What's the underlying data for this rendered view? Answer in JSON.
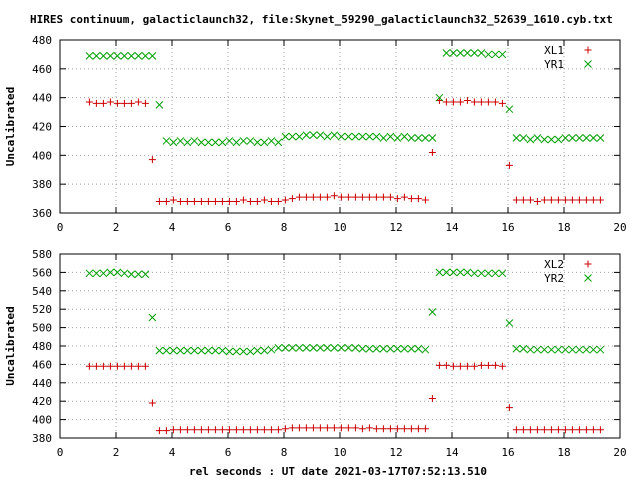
{
  "page": {
    "title": "HIRES continuum, galacticlaunch32, file:Skynet_59290_galacticlaunch32_52639_1610.cyb.txt",
    "xlabel": "rel seconds : UT date 2021-03-17T07:52:13.510"
  },
  "colors": {
    "red": "#cc0000",
    "green": "#00a000",
    "axis": "#000000",
    "grid": "#a0a0a0"
  },
  "chart_data": [
    {
      "type": "scatter",
      "ylabel": "Uncalibrated",
      "xlim": [
        0,
        20
      ],
      "ylim": [
        360,
        480
      ],
      "xticks": [
        0,
        2,
        4,
        6,
        8,
        10,
        12,
        14,
        16,
        18,
        20
      ],
      "yticks": [
        360,
        380,
        400,
        420,
        440,
        460,
        480
      ],
      "grid": true,
      "legend": "top-right",
      "series": [
        {
          "name": "XL1",
          "marker": "plus",
          "color": "#cc0000",
          "x": [
            1.05,
            1.3,
            1.55,
            1.8,
            2.05,
            2.3,
            2.55,
            2.8,
            3.05,
            3.3,
            3.55,
            3.8,
            4.05,
            4.3,
            4.55,
            4.8,
            5.05,
            5.3,
            5.55,
            5.8,
            6.05,
            6.3,
            6.55,
            6.8,
            7.05,
            7.3,
            7.55,
            7.8,
            8.05,
            8.3,
            8.55,
            8.8,
            9.05,
            9.3,
            9.55,
            9.8,
            10.05,
            10.3,
            10.55,
            10.8,
            11.05,
            11.3,
            11.55,
            11.8,
            12.05,
            12.3,
            12.55,
            12.8,
            13.05,
            13.3,
            13.55,
            13.8,
            14.05,
            14.3,
            14.55,
            14.8,
            15.05,
            15.3,
            15.55,
            15.8,
            16.05,
            16.3,
            16.55,
            16.8,
            17.05,
            17.3,
            17.55,
            17.8,
            18.05,
            18.3,
            18.55,
            18.8,
            19.05,
            19.3
          ],
          "y": [
            437,
            436,
            436,
            437,
            436,
            436,
            436,
            437,
            436,
            397,
            368,
            368,
            369,
            368,
            368,
            368,
            368,
            368,
            368,
            368,
            368,
            368,
            369,
            368,
            368,
            369,
            368,
            368,
            369,
            370,
            371,
            371,
            371,
            371,
            371,
            372,
            371,
            371,
            371,
            371,
            371,
            371,
            371,
            371,
            370,
            371,
            370,
            370,
            369,
            402,
            438,
            437,
            437,
            437,
            438,
            437,
            437,
            437,
            437,
            436,
            393,
            369,
            369,
            369,
            368,
            369,
            369,
            369,
            369,
            369,
            369,
            369,
            369,
            369
          ]
        },
        {
          "name": "YR1",
          "marker": "cross",
          "color": "#00a000",
          "x": [
            1.05,
            1.3,
            1.55,
            1.8,
            2.05,
            2.3,
            2.55,
            2.8,
            3.05,
            3.3,
            3.55,
            3.8,
            4.05,
            4.3,
            4.55,
            4.8,
            5.05,
            5.3,
            5.55,
            5.8,
            6.05,
            6.3,
            6.55,
            6.8,
            7.05,
            7.3,
            7.55,
            7.8,
            8.05,
            8.3,
            8.55,
            8.8,
            9.05,
            9.3,
            9.55,
            9.8,
            10.05,
            10.3,
            10.55,
            10.8,
            11.05,
            11.3,
            11.55,
            11.8,
            12.05,
            12.3,
            12.55,
            12.8,
            13.05,
            13.3,
            13.55,
            13.8,
            14.05,
            14.3,
            14.55,
            14.8,
            15.05,
            15.3,
            15.55,
            15.8,
            16.05,
            16.3,
            16.55,
            16.8,
            17.05,
            17.3,
            17.55,
            17.8,
            18.05,
            18.3,
            18.55,
            18.8,
            19.05,
            19.3
          ],
          "y": [
            469,
            469,
            469,
            469,
            469,
            469,
            469,
            469,
            469,
            469,
            435,
            410,
            409,
            410,
            409,
            410,
            409,
            409,
            409,
            409,
            410,
            409,
            410,
            410,
            409,
            409,
            410,
            409,
            413,
            413,
            413,
            414,
            414,
            414,
            413,
            414,
            413,
            413,
            413,
            413,
            413,
            413,
            412,
            413,
            412,
            413,
            412,
            412,
            412,
            412,
            440,
            471,
            471,
            471,
            471,
            471,
            471,
            470,
            470,
            470,
            432,
            412,
            412,
            411,
            412,
            411,
            411,
            411,
            412,
            412,
            412,
            412,
            412,
            412
          ]
        }
      ]
    },
    {
      "type": "scatter",
      "ylabel": "Uncalibrated",
      "xlabel": "rel seconds : UT date 2021-03-17T07:52:13.510",
      "xlim": [
        0,
        20
      ],
      "ylim": [
        380,
        580
      ],
      "xticks": [
        0,
        2,
        4,
        6,
        8,
        10,
        12,
        14,
        16,
        18,
        20
      ],
      "yticks": [
        380,
        400,
        420,
        440,
        460,
        480,
        500,
        520,
        540,
        560,
        580
      ],
      "grid": true,
      "legend": "top-right",
      "series": [
        {
          "name": "XL2",
          "marker": "plus",
          "color": "#cc0000",
          "x": [
            1.05,
            1.3,
            1.55,
            1.8,
            2.05,
            2.3,
            2.55,
            2.8,
            3.05,
            3.3,
            3.55,
            3.8,
            4.05,
            4.3,
            4.55,
            4.8,
            5.05,
            5.3,
            5.55,
            5.8,
            6.05,
            6.3,
            6.55,
            6.8,
            7.05,
            7.3,
            7.55,
            7.8,
            8.05,
            8.3,
            8.55,
            8.8,
            9.05,
            9.3,
            9.55,
            9.8,
            10.05,
            10.3,
            10.55,
            10.8,
            11.05,
            11.3,
            11.55,
            11.8,
            12.05,
            12.3,
            12.55,
            12.8,
            13.05,
            13.3,
            13.55,
            13.8,
            14.05,
            14.3,
            14.55,
            14.8,
            15.05,
            15.3,
            15.55,
            15.8,
            16.05,
            16.3,
            16.55,
            16.8,
            17.05,
            17.3,
            17.55,
            17.8,
            18.05,
            18.3,
            18.55,
            18.8,
            19.05,
            19.3
          ],
          "y": [
            458,
            458,
            458,
            458,
            458,
            458,
            458,
            458,
            458,
            418,
            388,
            388,
            389,
            389,
            389,
            389,
            389,
            389,
            389,
            389,
            389,
            389,
            389,
            389,
            389,
            389,
            389,
            389,
            390,
            391,
            391,
            391,
            391,
            391,
            391,
            391,
            391,
            391,
            391,
            390,
            391,
            390,
            390,
            390,
            390,
            390,
            390,
            390,
            390,
            423,
            459,
            459,
            458,
            458,
            458,
            458,
            459,
            459,
            459,
            458,
            413,
            389,
            389,
            389,
            389,
            389,
            389,
            389,
            389,
            389,
            389,
            389,
            389,
            389
          ]
        },
        {
          "name": "YR2",
          "marker": "cross",
          "color": "#00a000",
          "x": [
            1.05,
            1.3,
            1.55,
            1.8,
            2.05,
            2.3,
            2.55,
            2.8,
            3.05,
            3.3,
            3.55,
            3.8,
            4.05,
            4.3,
            4.55,
            4.8,
            5.05,
            5.3,
            5.55,
            5.8,
            6.05,
            6.3,
            6.55,
            6.8,
            7.05,
            7.3,
            7.55,
            7.8,
            8.05,
            8.3,
            8.55,
            8.8,
            9.05,
            9.3,
            9.55,
            9.8,
            10.05,
            10.3,
            10.55,
            10.8,
            11.05,
            11.3,
            11.55,
            11.8,
            12.05,
            12.3,
            12.55,
            12.8,
            13.05,
            13.3,
            13.55,
            13.8,
            14.05,
            14.3,
            14.55,
            14.8,
            15.05,
            15.3,
            15.55,
            15.8,
            16.05,
            16.3,
            16.55,
            16.8,
            17.05,
            17.3,
            17.55,
            17.8,
            18.05,
            18.3,
            18.55,
            18.8,
            19.05,
            19.3
          ],
          "y": [
            559,
            559,
            559,
            560,
            560,
            559,
            558,
            558,
            558,
            511,
            475,
            475,
            475,
            475,
            475,
            475,
            475,
            475,
            475,
            475,
            474,
            474,
            474,
            474,
            475,
            475,
            476,
            478,
            478,
            478,
            478,
            478,
            478,
            478,
            478,
            478,
            478,
            478,
            478,
            477,
            477,
            477,
            477,
            477,
            477,
            477,
            477,
            477,
            476,
            517,
            560,
            560,
            560,
            560,
            560,
            559,
            559,
            559,
            559,
            559,
            505,
            477,
            477,
            476,
            476,
            476,
            476,
            476,
            476,
            476,
            476,
            476,
            476,
            476
          ]
        }
      ]
    }
  ]
}
